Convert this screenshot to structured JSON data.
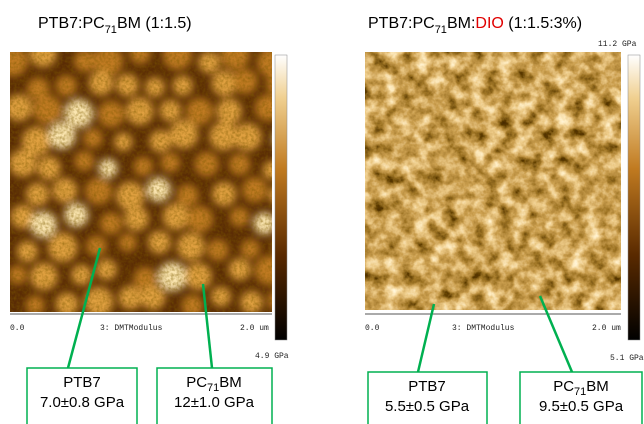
{
  "panels": [
    {
      "title": {
        "prefix": "PTB7:PC",
        "sub": "71",
        "suffix": "BM",
        "ratio": "(1:1.5)"
      },
      "scale": {
        "start": "0.0",
        "channel": "3: DMTModulus",
        "end": "2.0 um"
      },
      "colorbar": {
        "min": "4.9 GPa"
      },
      "callouts": [
        {
          "name": {
            "prefix": "PTB7"
          },
          "value": "7.0±0.8 GPa"
        },
        {
          "name": {
            "prefix": "PC",
            "sub": "71",
            "suffix": "BM"
          },
          "value": "12±1.0 GPa"
        }
      ]
    },
    {
      "title": {
        "prefix": "PTB7:PC",
        "sub": "71",
        "suffix": "BM:",
        "additive": "DIO",
        "ratio": "(1:1.5:3%)"
      },
      "scale": {
        "start": "0.0",
        "channel": "3: DMTModulus",
        "end": "2.0 um"
      },
      "colorbar": {
        "max": "11.2 GPa",
        "min": "5.1 GPa"
      },
      "callouts": [
        {
          "name": {
            "prefix": "PTB7"
          },
          "value": "5.5±0.5 GPa"
        },
        {
          "name": {
            "prefix": "PC",
            "sub": "71",
            "suffix": "BM"
          },
          "value": "9.5±0.5 GPa"
        }
      ]
    }
  ]
}
